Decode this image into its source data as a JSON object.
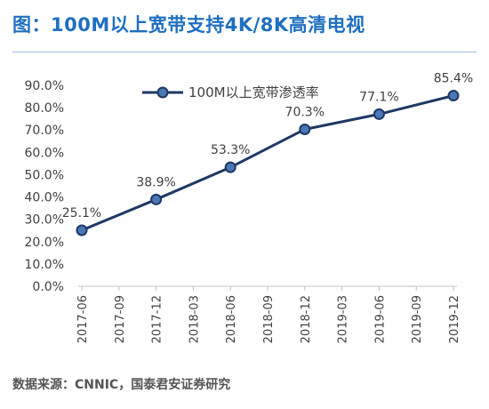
{
  "page_title": "图：100M以上宽带支持4K/8K高清电视",
  "source": "数据来源：CNNIC，国泰君安证券研究",
  "colors": {
    "title": "#1f6fbf",
    "line": "#1f3864",
    "marker_fill": "#4a78b5",
    "axis": "#bfbfbf",
    "text": "#404040"
  },
  "chart_data": {
    "type": "line",
    "title": "",
    "xlabel": "",
    "ylabel": "",
    "x": [
      "2017-06",
      "2017-09",
      "2017-12",
      "2018-03",
      "2018-06",
      "2018-09",
      "2018-12",
      "2019-03",
      "2019-06",
      "2019-09",
      "2019-12"
    ],
    "y_ticks": [
      "0.0%",
      "10.0%",
      "20.0%",
      "30.0%",
      "40.0%",
      "50.0%",
      "60.0%",
      "70.0%",
      "80.0%",
      "90.0%"
    ],
    "ylim": [
      0,
      90
    ],
    "grid": false,
    "legend_position": "top",
    "series": [
      {
        "name": "100M以上宽带渗透率",
        "points": [
          {
            "x": "2017-06",
            "y": 25.1,
            "label": "25.1%"
          },
          {
            "x": "2017-12",
            "y": 38.9,
            "label": "38.9%"
          },
          {
            "x": "2018-06",
            "y": 53.3,
            "label": "53.3%"
          },
          {
            "x": "2018-12",
            "y": 70.3,
            "label": "70.3%"
          },
          {
            "x": "2019-06",
            "y": 77.1,
            "label": "77.1%"
          },
          {
            "x": "2019-12",
            "y": 85.4,
            "label": "85.4%"
          }
        ]
      }
    ]
  }
}
